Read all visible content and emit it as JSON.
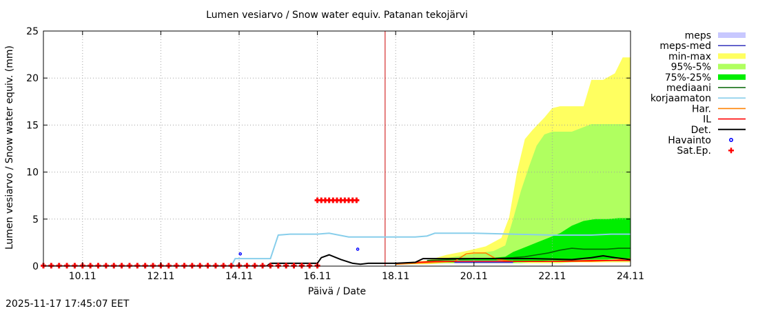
{
  "chart_data": {
    "type": "area",
    "title": "Lumen vesiarvo / Snow water equiv.  Patanan tekojärvi",
    "xlabel": "Päivä / Date",
    "ylabel": "Lumen vesiarvo / Snow water equiv. (mm)",
    "timestamp": "2025-11-17 17:45:07 EET",
    "xlim": [
      9.0,
      24.0
    ],
    "ylim": [
      0,
      25
    ],
    "yticks": [
      0,
      5,
      10,
      15,
      20,
      25
    ],
    "xticks": [
      {
        "value": 10.0,
        "label": "10.11"
      },
      {
        "value": 12.0,
        "label": "12.11"
      },
      {
        "value": 14.0,
        "label": "14.11"
      },
      {
        "value": 16.0,
        "label": "16.11"
      },
      {
        "value": 18.0,
        "label": "18.11"
      },
      {
        "value": 20.0,
        "label": "20.11"
      },
      {
        "value": 22.0,
        "label": "22.11"
      },
      {
        "value": 24.0,
        "label": "24.11"
      }
    ],
    "grid": true,
    "now_line_x": 17.73,
    "colors": {
      "meps": "#c8c8ff",
      "meps_med": "#4040c0",
      "minmax": "#ffff60",
      "p95_5": "#b0ff60",
      "p75_25": "#00ee00",
      "mediaani": "#006400",
      "korjaamaton": "#87ceeb",
      "har": "#ff8000",
      "il": "#ff0000",
      "det": "#000000",
      "havainto": "#0000ff",
      "satep": "#ff0000",
      "now_line": "#cc0000",
      "grid": "#a0a0a0"
    },
    "legend": [
      {
        "key": "meps",
        "label": "meps",
        "style": "box"
      },
      {
        "key": "meps_med",
        "label": "meps-med",
        "style": "line"
      },
      {
        "key": "minmax",
        "label": "min-max",
        "style": "box"
      },
      {
        "key": "p95_5",
        "label": "95%-5%",
        "style": "box"
      },
      {
        "key": "p75_25",
        "label": "75%-25%",
        "style": "box"
      },
      {
        "key": "mediaani",
        "label": "mediaani",
        "style": "line"
      },
      {
        "key": "korjaamaton",
        "label": "korjaamaton",
        "style": "line"
      },
      {
        "key": "har",
        "label": "Har.",
        "style": "line"
      },
      {
        "key": "il",
        "label": "IL",
        "style": "line"
      },
      {
        "key": "det",
        "label": "Det.",
        "style": "line"
      },
      {
        "key": "havainto",
        "label": "Havainto",
        "style": "circle"
      },
      {
        "key": "satep",
        "label": "Sat.Ep.",
        "style": "plus"
      }
    ],
    "bands": {
      "minmax": {
        "x": [
          18.0,
          18.8,
          19.3,
          19.8,
          20.3,
          20.7,
          20.9,
          21.1,
          21.3,
          21.5,
          21.8,
          22.0,
          22.2,
          22.5,
          22.8,
          23.0,
          23.3,
          23.6,
          23.8,
          24.0
        ],
        "low": [
          0.2,
          0.2,
          0.3,
          0.3,
          0.3,
          0.3,
          0.3,
          0.3,
          0.3,
          0.3,
          0.3,
          0.3,
          0.3,
          0.4,
          0.4,
          0.4,
          0.4,
          0.4,
          0.4,
          0.4
        ],
        "high": [
          0.3,
          0.6,
          1.2,
          1.6,
          2.1,
          3.0,
          5.2,
          10.0,
          13.5,
          14.5,
          15.8,
          16.8,
          17.0,
          17.0,
          17.0,
          19.8,
          19.8,
          20.5,
          22.2,
          22.2
        ]
      },
      "p95_5": {
        "x": [
          18.5,
          19.0,
          19.5,
          20.0,
          20.5,
          20.8,
          21.0,
          21.2,
          21.4,
          21.6,
          21.8,
          22.0,
          22.5,
          23.0,
          23.5,
          24.0
        ],
        "low": [
          0.3,
          0.3,
          0.3,
          0.3,
          0.3,
          0.3,
          0.3,
          0.3,
          0.4,
          0.4,
          0.4,
          0.4,
          0.4,
          0.5,
          0.5,
          0.5
        ],
        "high": [
          0.3,
          0.6,
          1.0,
          1.3,
          1.6,
          2.2,
          5.0,
          8.0,
          10.5,
          12.8,
          14.0,
          14.3,
          14.3,
          15.1,
          15.1,
          15.1
        ]
      },
      "p75_25": {
        "x": [
          19.0,
          19.5,
          20.0,
          20.5,
          20.8,
          21.0,
          21.3,
          21.6,
          21.9,
          22.2,
          22.5,
          22.8,
          23.1,
          23.4,
          23.7,
          24.0
        ],
        "low": [
          0.4,
          0.4,
          0.4,
          0.4,
          0.4,
          0.4,
          0.5,
          0.5,
          0.6,
          0.6,
          0.6,
          0.7,
          0.7,
          0.7,
          0.8,
          0.8
        ],
        "high": [
          0.5,
          0.6,
          0.8,
          0.9,
          1.0,
          1.5,
          2.0,
          2.5,
          3.0,
          3.5,
          4.3,
          4.8,
          5.0,
          5.0,
          5.1,
          5.1
        ]
      },
      "meps": {
        "x": [
          19.5,
          20.0,
          20.5,
          21.0
        ],
        "low": [
          0.3,
          0.3,
          0.3,
          0.3
        ],
        "high": [
          0.6,
          0.6,
          0.6,
          0.6
        ]
      }
    },
    "series": [
      {
        "name": "mediaani",
        "key": "mediaani",
        "x": [
          18.8,
          19.5,
          20.0,
          20.5,
          21.0,
          21.3,
          21.6,
          21.9,
          22.2,
          22.5,
          22.8,
          23.0,
          23.4,
          23.7,
          24.0
        ],
        "y": [
          0.6,
          0.7,
          0.8,
          0.8,
          0.9,
          1.0,
          1.2,
          1.4,
          1.7,
          1.9,
          1.8,
          1.8,
          1.8,
          1.9,
          1.9
        ]
      },
      {
        "name": "korjaamaton",
        "key": "korjaamaton",
        "x": [
          9.0,
          13.8,
          13.9,
          14.0,
          14.5,
          14.8,
          15.0,
          15.3,
          15.8,
          16.0,
          16.3,
          16.8,
          17.5,
          18.0,
          18.5,
          18.8,
          19.0,
          20.0,
          21.0,
          22.0,
          23.0,
          23.5,
          24.0
        ],
        "y": [
          0.0,
          0.0,
          0.8,
          0.8,
          0.8,
          0.8,
          3.3,
          3.4,
          3.4,
          3.4,
          3.5,
          3.1,
          3.1,
          3.1,
          3.1,
          3.2,
          3.5,
          3.5,
          3.4,
          3.3,
          3.3,
          3.4,
          3.4
        ]
      },
      {
        "name": "Har.",
        "key": "har",
        "x": [
          18.0,
          18.5,
          19.0,
          19.5,
          19.8,
          20.0,
          20.3,
          20.6,
          21.0,
          22.0,
          23.0,
          23.5,
          24.0
        ],
        "y": [
          0.2,
          0.3,
          0.4,
          0.5,
          1.3,
          1.4,
          1.4,
          0.7,
          0.5,
          0.5,
          0.5,
          0.6,
          0.8
        ]
      },
      {
        "name": "IL",
        "key": "il",
        "x": [
          18.0,
          19.0,
          20.0,
          21.0,
          22.0,
          23.0,
          24.0
        ],
        "y": [
          0.3,
          0.5,
          0.5,
          0.5,
          0.5,
          0.6,
          0.6
        ]
      },
      {
        "name": "meps-med",
        "key": "meps_med",
        "x": [
          19.5,
          20.0,
          20.5,
          21.0
        ],
        "y": [
          0.4,
          0.4,
          0.4,
          0.4
        ]
      },
      {
        "name": "Det.",
        "key": "det",
        "x": [
          9.0,
          14.7,
          14.8,
          15.0,
          15.5,
          15.9,
          16.0,
          16.1,
          16.3,
          16.6,
          16.9,
          17.1,
          17.3,
          17.5,
          18.0,
          18.5,
          18.7,
          19.5,
          20.5,
          21.5,
          22.5,
          23.0,
          23.3,
          23.6,
          24.0
        ],
        "y": [
          0.0,
          0.0,
          0.3,
          0.3,
          0.3,
          0.3,
          0.3,
          0.9,
          1.2,
          0.7,
          0.3,
          0.2,
          0.3,
          0.3,
          0.3,
          0.4,
          0.8,
          0.8,
          0.8,
          0.8,
          0.7,
          0.9,
          1.1,
          0.9,
          0.7
        ]
      }
    ],
    "havainto_points": [
      {
        "x": 14.03,
        "y": 1.3
      },
      {
        "x": 17.03,
        "y": 1.8
      }
    ],
    "satep_points": {
      "x": [
        9.0,
        9.2,
        9.4,
        9.6,
        9.8,
        10.0,
        10.2,
        10.4,
        10.6,
        10.8,
        11.0,
        11.2,
        11.4,
        11.6,
        11.8,
        12.0,
        12.2,
        12.4,
        12.6,
        12.8,
        13.0,
        13.2,
        13.4,
        13.6,
        13.8,
        14.0,
        14.2,
        14.4,
        14.6,
        14.8,
        15.0,
        15.2,
        15.4,
        15.6,
        15.8,
        16.0,
        16.0,
        16.1,
        16.2,
        16.3,
        16.4,
        16.5,
        16.6,
        16.7,
        16.8,
        16.9,
        17.0
      ],
      "y": [
        0.05,
        0.05,
        0.05,
        0.05,
        0.05,
        0.05,
        0.05,
        0.05,
        0.05,
        0.05,
        0.05,
        0.05,
        0.05,
        0.05,
        0.05,
        0.05,
        0.05,
        0.05,
        0.05,
        0.05,
        0.05,
        0.05,
        0.05,
        0.05,
        0.05,
        0.05,
        0.05,
        0.05,
        0.05,
        0.05,
        0.05,
        0.05,
        0.05,
        0.05,
        0.05,
        0.05,
        7.0,
        7.0,
        7.0,
        7.0,
        7.0,
        7.0,
        7.0,
        7.0,
        7.0,
        7.0,
        7.0
      ]
    }
  }
}
